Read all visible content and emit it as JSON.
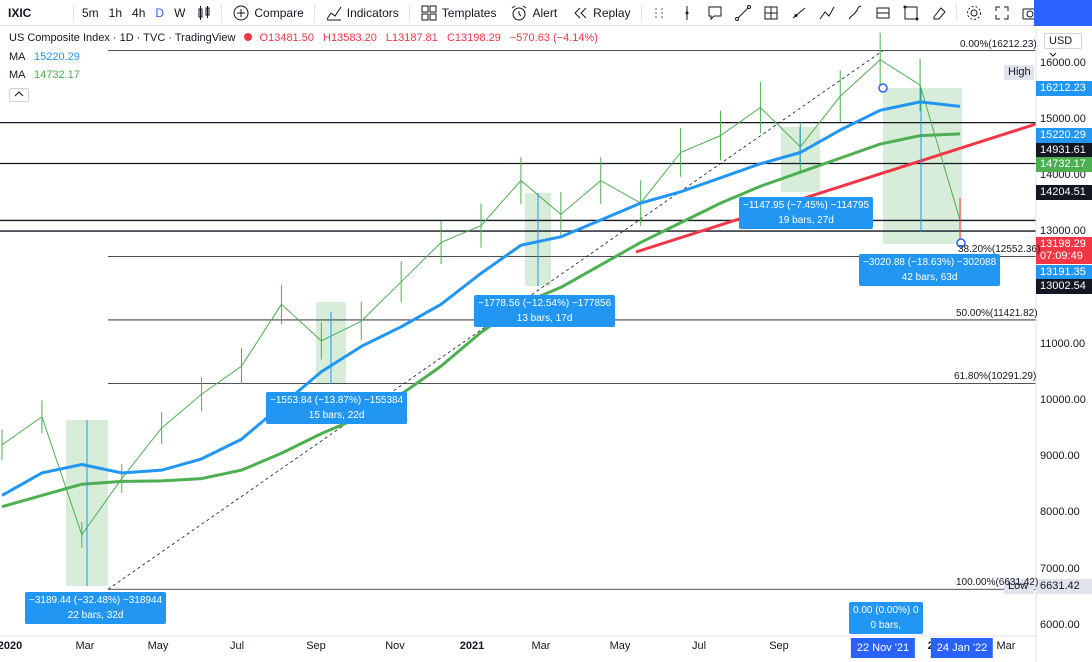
{
  "toolbar": {
    "symbol": "IXIC",
    "intervals": [
      "5m",
      "1h",
      "4h",
      "D",
      "W"
    ],
    "active_interval": "D",
    "compare": "Compare",
    "indicators": "Indicators",
    "templates": "Templates",
    "alert": "Alert",
    "replay": "Replay"
  },
  "legend": {
    "title": "US Composite Index · 1D · TVC · TradingView",
    "o": "O13481.50",
    "h": "H13583.20",
    "l": "L13187.81",
    "c": "C13198.29",
    "chg": "−570.63 (−4.14%)",
    "ma1_label": "MA",
    "ma1_value": "15220.29",
    "ma2_label": "MA",
    "ma2_value": "14732.17"
  },
  "currency": "USD",
  "price_tags": [
    {
      "name": "high-label",
      "text": "High",
      "color": "#e0e3eb",
      "fg": "#131722"
    },
    {
      "name": "high-value",
      "text": "16212.23",
      "color": "#2196f3",
      "fg": "#ffffff"
    },
    {
      "name": "ma1-tag",
      "text": "15220.29",
      "color": "#2196f3",
      "fg": "#ffffff"
    },
    {
      "name": "level-14931",
      "text": "14931.61",
      "color": "#131722",
      "fg": "#ffffff"
    },
    {
      "name": "ma2-tag",
      "text": "14732.17",
      "color": "#4caf50",
      "fg": "#ffffff"
    },
    {
      "name": "level-14204",
      "text": "14204.51",
      "color": "#131722",
      "fg": "#ffffff"
    },
    {
      "name": "last-price",
      "text": "13198.29",
      "color": "#f23645",
      "fg": "#ffffff"
    },
    {
      "name": "countdown",
      "text": "07:09:49",
      "color": "#f23645",
      "fg": "#ffffff"
    },
    {
      "name": "level-13191",
      "text": "13191.35",
      "color": "#2196f3",
      "fg": "#ffffff"
    },
    {
      "name": "level-13002",
      "text": "13002.54",
      "color": "#131722",
      "fg": "#ffffff"
    },
    {
      "name": "low-label",
      "text": "Low",
      "color": "#e0e3eb",
      "fg": "#131722"
    },
    {
      "name": "low-value",
      "text": "6631.42",
      "color": "#e0e3eb",
      "fg": "#131722"
    }
  ],
  "annotations": [
    {
      "l1": "−3189.44 (−32.48%) −318944",
      "l2": "22 bars, 32d"
    },
    {
      "l1": "−1553.84 (−13.87%) −155384",
      "l2": "15 bars, 22d"
    },
    {
      "l1": "−1778.56 (−12.54%) −177856",
      "l2": "13 bars, 17d"
    },
    {
      "l1": "−1147.95 (−7.45%) −114795",
      "l2": "19 bars, 27d"
    },
    {
      "l1": "−3020.88 (−18.63%) −302088",
      "l2": "42 bars, 63d"
    },
    {
      "l1": "0.00 (0.00%) 0",
      "l2": "0 bars,"
    }
  ],
  "date_tags": [
    "22 Nov '21",
    "24 Jan '22"
  ],
  "fib_labels": [
    "0.00%(16212.23)",
    "38.20%(12552.36)",
    "50.00%(11421.82)",
    "61.80%(10291.29)",
    "100.00%(6631.42)"
  ],
  "chart_data": {
    "type": "line",
    "title": "US Composite Index",
    "x_ticks": [
      "2020",
      "Mar",
      "May",
      "Jul",
      "Sep",
      "Nov",
      "2021",
      "Mar",
      "May",
      "Jul",
      "Sep",
      "Nov",
      "2022",
      "Mar"
    ],
    "y_ticks": [
      16000,
      15000,
      14000,
      13000,
      12000,
      11000,
      10000,
      9000,
      8000,
      7000,
      6000
    ],
    "ylim": [
      5800,
      16650
    ],
    "x": [
      "2020-01",
      "2020-02",
      "2020-03",
      "2020-04",
      "2020-05",
      "2020-06",
      "2020-07",
      "2020-08",
      "2020-09",
      "2020-10",
      "2020-11",
      "2020-12",
      "2021-01",
      "2021-02",
      "2021-03",
      "2021-04",
      "2021-05",
      "2021-06",
      "2021-07",
      "2021-08",
      "2021-09",
      "2021-10",
      "2021-11",
      "2021-12",
      "2022-01"
    ],
    "series": [
      {
        "name": "US Composite Index",
        "values": [
          9200,
          9700,
          7600,
          8600,
          9500,
          10100,
          10600,
          11700,
          11050,
          11400,
          12100,
          12800,
          13100,
          13900,
          13300,
          13900,
          13500,
          14400,
          14700,
          15200,
          14500,
          15400,
          16050,
          15600,
          13198
        ]
      },
      {
        "name": "MA",
        "values": [
          8300,
          8700,
          8850,
          8700,
          8750,
          8950,
          9300,
          9900,
          10500,
          10950,
          11300,
          11700,
          12250,
          12750,
          12900,
          13200,
          13500,
          13700,
          13950,
          14200,
          14400,
          14800,
          15150,
          15300,
          15220
        ]
      },
      {
        "name": "MA",
        "values": [
          8100,
          8300,
          8500,
          8550,
          8560,
          8600,
          8750,
          9050,
          9400,
          9700,
          10100,
          10600,
          11200,
          11700,
          12000,
          12400,
          12800,
          13150,
          13500,
          13800,
          14050,
          14300,
          14550,
          14700,
          14732
        ]
      }
    ],
    "horizontal_levels": [
      14931.61,
      14204.51,
      13191.35,
      13002.54
    ],
    "fib_levels": [
      16212.23,
      12552.36,
      11421.82,
      10291.29,
      6631.42
    ]
  },
  "colors": {
    "price": "#4caf50",
    "ma1": "#2196f3",
    "ma2": "#4caf50",
    "trend": "#f23645",
    "box": "#c8e6c9"
  }
}
